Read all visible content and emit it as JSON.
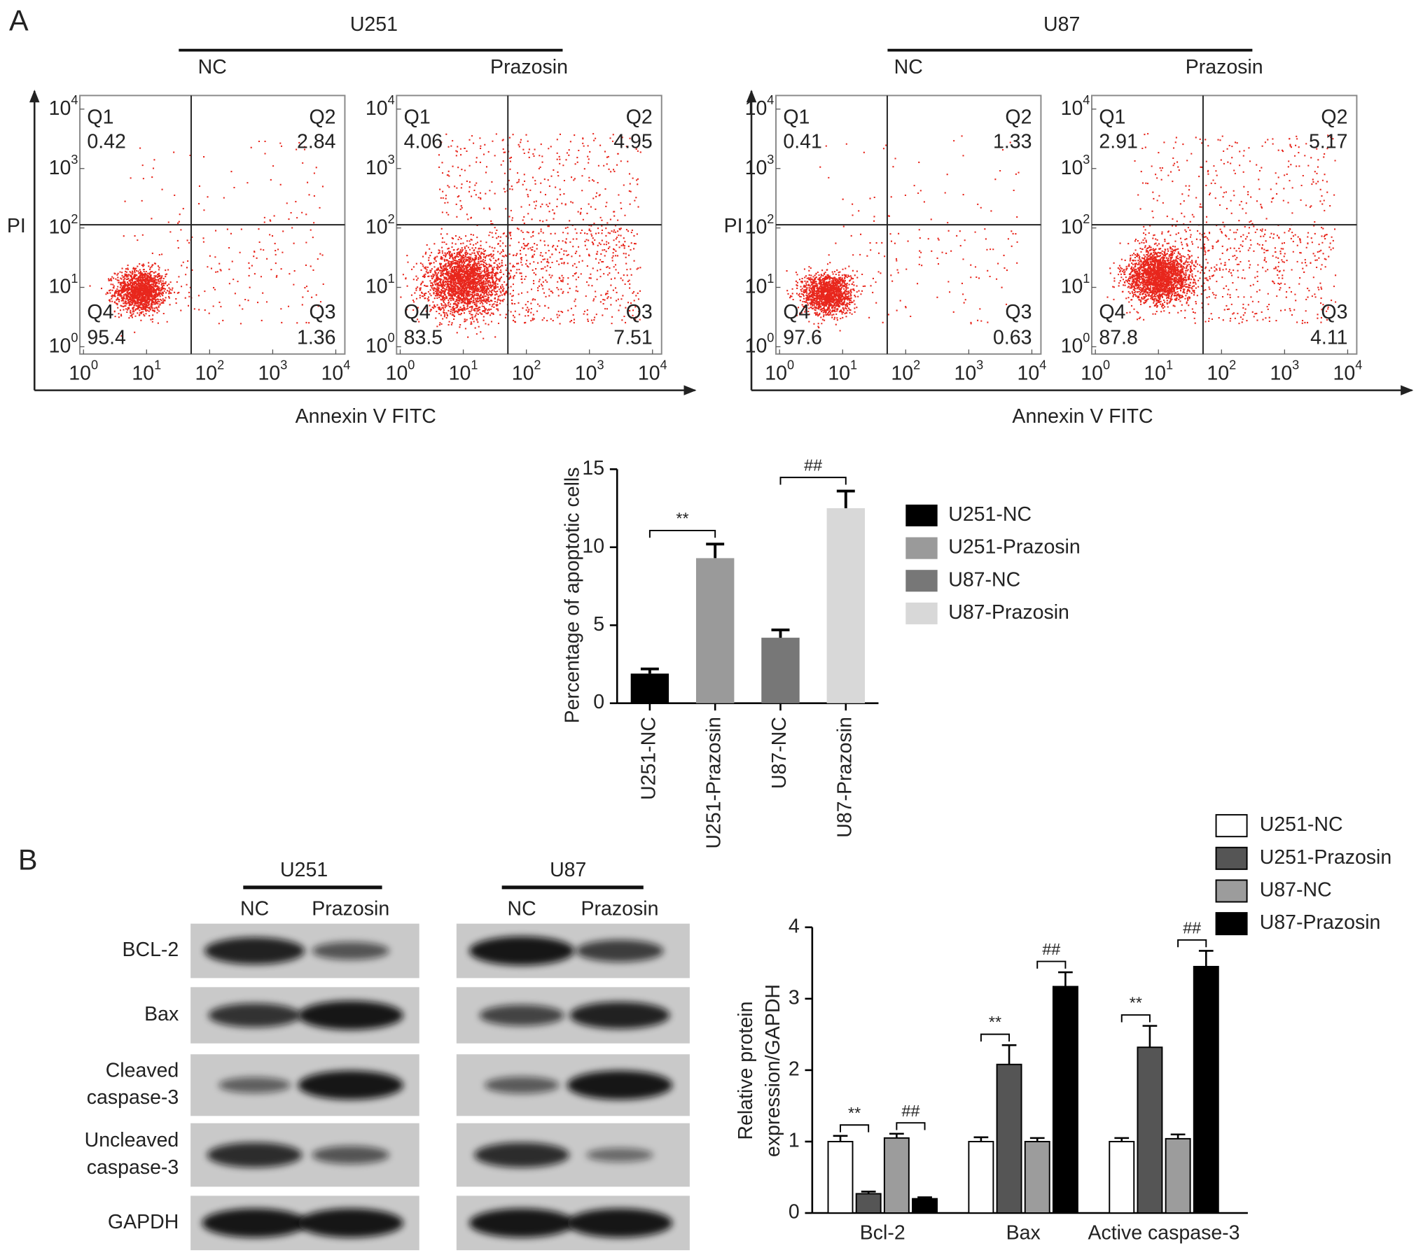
{
  "panel_a": {
    "label": "A",
    "axis_tick_base": "10",
    "axis_tick_exponents": [
      "0",
      "1",
      "2",
      "3",
      "4"
    ],
    "flow_groups": [
      {
        "cell_line": "U251",
        "y_label": "PI",
        "x_label": "Annexin V FITC",
        "plots": [
          {
            "condition": "NC",
            "quadrants": [
              {
                "name": "Q1",
                "value": 0.42
              },
              {
                "name": "Q2",
                "value": 2.84
              },
              {
                "name": "Q3",
                "value": 1.36
              },
              {
                "name": "Q4",
                "value": 95.4
              }
            ]
          },
          {
            "condition": "Prazosin",
            "quadrants": [
              {
                "name": "Q1",
                "value": 4.06
              },
              {
                "name": "Q2",
                "value": 4.95
              },
              {
                "name": "Q3",
                "value": 7.51
              },
              {
                "name": "Q4",
                "value": 83.5
              }
            ]
          }
        ]
      },
      {
        "cell_line": "U87",
        "y_label": "PI",
        "x_label": "Annexin V FITC",
        "plots": [
          {
            "condition": "NC",
            "quadrants": [
              {
                "name": "Q1",
                "value": 0.41
              },
              {
                "name": "Q2",
                "value": 1.33
              },
              {
                "name": "Q3",
                "value": 0.63
              },
              {
                "name": "Q4",
                "value": 97.6
              }
            ]
          },
          {
            "condition": "Prazosin",
            "quadrants": [
              {
                "name": "Q1",
                "value": 2.91
              },
              {
                "name": "Q2",
                "value": 5.17
              },
              {
                "name": "Q3",
                "value": 4.11
              },
              {
                "name": "Q4",
                "value": 87.8
              }
            ]
          }
        ]
      }
    ]
  },
  "panel_b": {
    "label": "B",
    "blot_groups": [
      {
        "cell_line": "U251",
        "conditions": [
          "NC",
          "Prazosin"
        ]
      },
      {
        "cell_line": "U87",
        "conditions": [
          "NC",
          "Prazosin"
        ]
      }
    ],
    "blot_rows": [
      [
        "BCL-2"
      ],
      [
        "Bax"
      ],
      [
        "Cleaved",
        "caspase-3"
      ],
      [
        "Uncleaved",
        "caspase-3"
      ],
      [
        "GAPDH"
      ]
    ]
  },
  "chart_data": [
    {
      "type": "bar",
      "ylabel": "Percentage of apoptotic cells",
      "categories": [
        "U251-NC",
        "U251-Prazosin",
        "U87-NC",
        "U87-Prazosin"
      ],
      "values": [
        1.9,
        9.3,
        4.2,
        12.5
      ],
      "errors": [
        0.3,
        0.9,
        0.5,
        1.1
      ],
      "colors": [
        "#000000",
        "#9a9a9a",
        "#777777",
        "#d8d8d8"
      ],
      "ylim": [
        0,
        15
      ],
      "yticks": [
        0,
        5,
        10,
        15
      ],
      "legend": "right",
      "annotations": [
        {
          "text": "**",
          "between": [
            "U251-NC",
            "U251-Prazosin"
          ]
        },
        {
          "text": "##",
          "between": [
            "U87-NC",
            "U87-Prazosin"
          ]
        }
      ]
    },
    {
      "type": "grouped_bar",
      "ylabel": [
        "Relative protein",
        "expression/GAPDH"
      ],
      "categories": [
        "Bcl-2",
        "Bax",
        "Active caspase-3"
      ],
      "series": [
        {
          "name": "U251-NC",
          "color": "#ffffff",
          "values": [
            1.0,
            1.0,
            1.0
          ],
          "errors": [
            0.08,
            0.06,
            0.05
          ]
        },
        {
          "name": "U251-Prazosin",
          "color": "#555555",
          "values": [
            0.27,
            2.08,
            2.32
          ],
          "errors": [
            0.03,
            0.27,
            0.3
          ]
        },
        {
          "name": "U87-NC",
          "color": "#9c9c9c",
          "values": [
            1.05,
            1.0,
            1.04
          ],
          "errors": [
            0.06,
            0.05,
            0.06
          ]
        },
        {
          "name": "U87-Prazosin",
          "color": "#000000",
          "values": [
            0.2,
            3.17,
            3.45
          ],
          "errors": [
            0.02,
            0.2,
            0.22
          ]
        }
      ],
      "ylim": [
        0,
        4
      ],
      "yticks": [
        0,
        1,
        2,
        3,
        4
      ],
      "legend": "top-right",
      "annotations": [
        {
          "text": "**",
          "between": [
            "U251-NC",
            "U251-Prazosin"
          ]
        },
        {
          "text": "##",
          "between": [
            "U87-NC",
            "U87-Prazosin"
          ]
        }
      ]
    }
  ]
}
